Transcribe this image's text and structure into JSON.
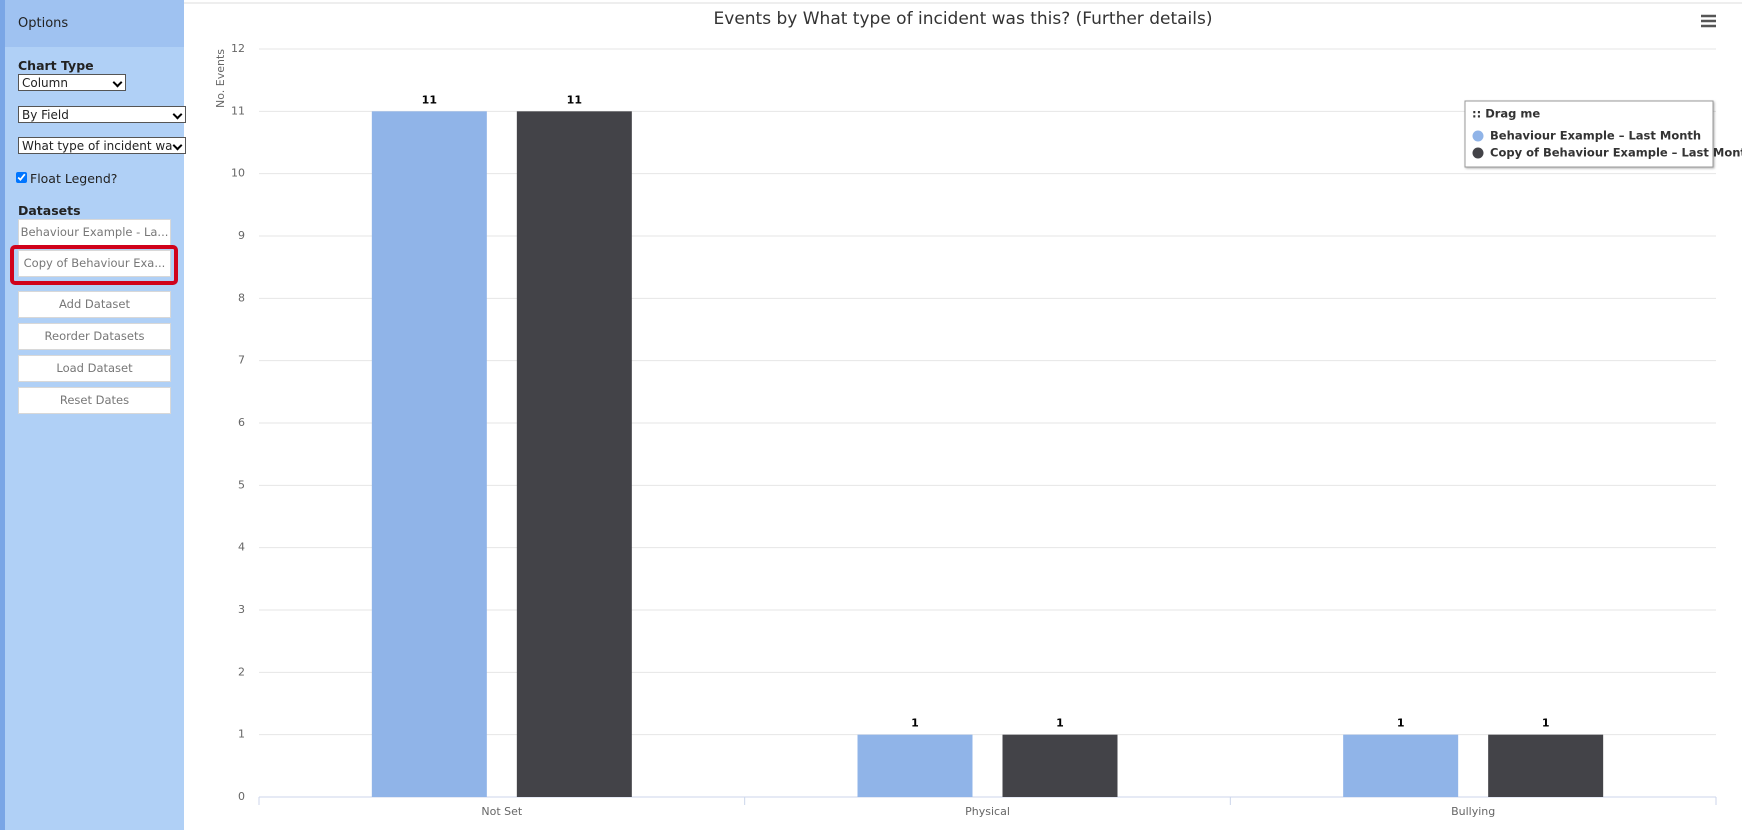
{
  "sidebar": {
    "header": "Options",
    "chart_type_label": "Chart Type",
    "chart_type": "Column",
    "group_by": "By Field",
    "field": "What type of incident wa",
    "float_legend": {
      "label": "Float Legend?",
      "checked": true
    },
    "datasets_label": "Datasets",
    "datasets": [
      "Behaviour Example - La...",
      "Copy of Behaviour Exa..."
    ],
    "buttons": [
      "Add Dataset",
      "Reorder Datasets",
      "Load Dataset",
      "Reset Dates"
    ]
  },
  "chart_data": {
    "type": "bar",
    "title": "Events by What type of incident was this? (Further details)",
    "y_label": "No. Events",
    "categories": [
      "Not Set",
      "Physical",
      "Bullying"
    ],
    "series": [
      {
        "name": "Behaviour Example – Last Month",
        "color": "#90b4e8",
        "values": [
          11,
          1,
          1
        ]
      },
      {
        "name": "Copy of Behaviour Example – Last Month",
        "color": "#434348",
        "values": [
          11,
          1,
          1
        ]
      }
    ],
    "ylim": [
      0,
      12
    ],
    "yticks": [
      0,
      1,
      2,
      3,
      4,
      5,
      6,
      7,
      8,
      9,
      10,
      11,
      12
    ],
    "grid": true,
    "legend_title": ":: Drag me",
    "legend_position": "upper right",
    "data_labels": true
  }
}
